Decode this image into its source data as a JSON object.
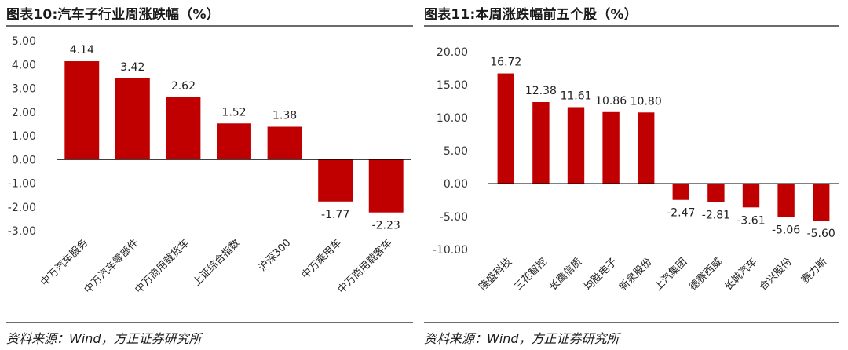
{
  "colors": {
    "bar": "#c00000",
    "axis": "#000000",
    "rule": "#6b6b6b"
  },
  "chart_data": [
    {
      "type": "bar",
      "title": "图表10:汽车子行业周涨跌幅（%）",
      "source": "资料来源：Wind，方正证券研究所",
      "categories": [
        "中万汽车服务",
        "中万汽车零部件",
        "中万商用载货车",
        "上证综合指数",
        "沪深300",
        "中万乘用车",
        "中万商用载客车"
      ],
      "values": [
        4.14,
        3.42,
        2.62,
        1.52,
        1.38,
        -1.77,
        -2.23
      ],
      "value_labels": [
        "4.14",
        "3.42",
        "2.62",
        "1.52",
        "1.38",
        "-1.77",
        "-2.23"
      ],
      "ylim": [
        -3,
        5
      ],
      "yticks": [
        5,
        4,
        3,
        2,
        1,
        0,
        -1,
        -2,
        -3
      ],
      "ytick_labels": [
        "5.00",
        "4.00",
        "3.00",
        "2.00",
        "1.00",
        "0.00",
        "-1.00",
        "-2.00",
        "-3.00"
      ],
      "grid": false,
      "legend": "none"
    },
    {
      "type": "bar",
      "title": "图表11:本周涨跌幅前五个股（%）",
      "source": "资料来源：Wind，方正证券研究所",
      "categories": [
        "隆盛科技",
        "三花智控",
        "长鹰信质",
        "均胜电子",
        "新泉股份",
        "上汽集团",
        "德赛西威",
        "长城汽车",
        "合兴股份",
        "赛力斯"
      ],
      "values": [
        16.72,
        12.38,
        11.61,
        10.86,
        10.8,
        -2.47,
        -2.81,
        -3.61,
        -5.06,
        -5.6
      ],
      "value_labels": [
        "16.72",
        "12.38",
        "11.61",
        "10.86",
        "10.80",
        "-2.47",
        "-2.81",
        "-3.61",
        "-5.06",
        "-5.60"
      ],
      "ylim": [
        -10,
        20
      ],
      "yticks": [
        20,
        15,
        10,
        5,
        0,
        -5,
        -10
      ],
      "ytick_labels": [
        "20.00",
        "15.00",
        "10.00",
        "5.00",
        "0.00",
        "-5.00",
        "-10.00"
      ],
      "grid": false,
      "legend": "none"
    }
  ]
}
